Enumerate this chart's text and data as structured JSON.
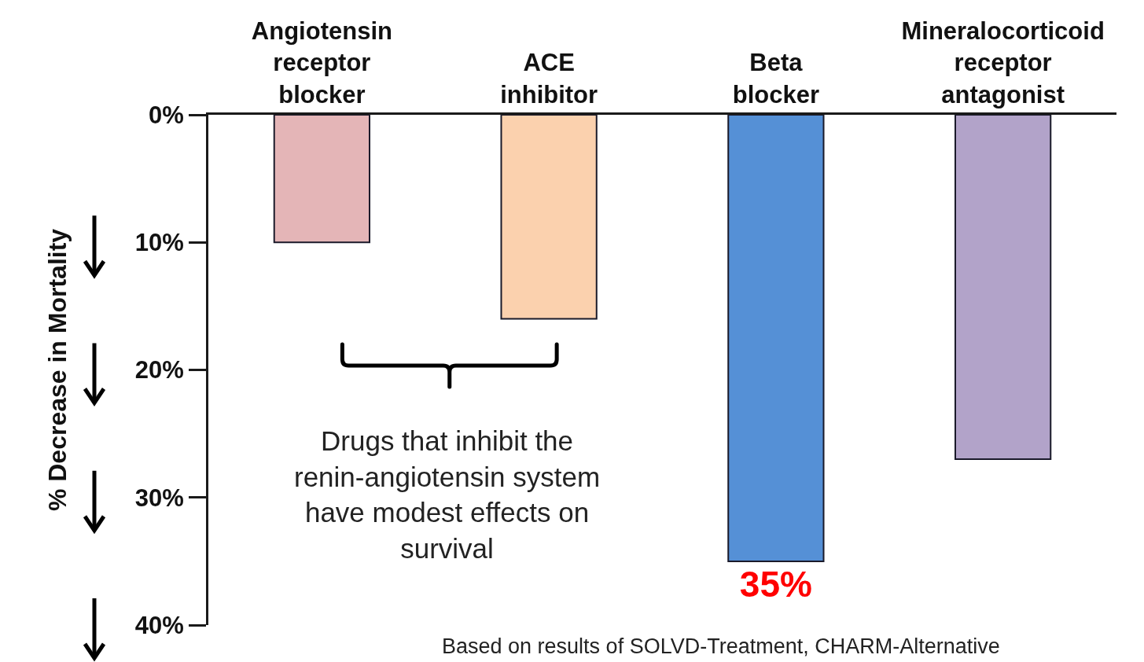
{
  "chart_data": {
    "type": "bar",
    "ylabel": "% Decrease in Mortality",
    "categories": [
      "Angiotensin receptor blocker",
      "ACE inhibitor",
      "Beta blocker",
      "Mineralocorticoid receptor antagonist"
    ],
    "values": [
      10,
      16,
      35,
      27
    ],
    "colors": [
      "#e4b5b7",
      "#fbd1ae",
      "#5590d6",
      "#b2a3c9"
    ],
    "value_labels": [
      null,
      null,
      "35%",
      null
    ],
    "ylim": [
      40,
      0
    ],
    "yticks": [
      {
        "value": 0,
        "label": "0%"
      },
      {
        "value": 10,
        "label": "10%"
      },
      {
        "value": 20,
        "label": "20%"
      },
      {
        "value": 30,
        "label": "30%"
      },
      {
        "value": 40,
        "label": "40%"
      }
    ],
    "annotations": [
      "Drugs that inhibit the renin-angiotensin system have modest effects on survival",
      "Based on results of SOLVD-Treatment, CHARM-Alternative"
    ]
  }
}
